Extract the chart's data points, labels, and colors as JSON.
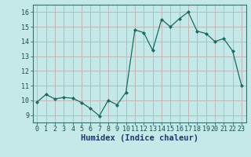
{
  "x": [
    0,
    1,
    2,
    3,
    4,
    5,
    6,
    7,
    8,
    9,
    10,
    11,
    12,
    13,
    14,
    15,
    16,
    17,
    18,
    19,
    20,
    21,
    22,
    23
  ],
  "y": [
    9.9,
    10.4,
    10.1,
    10.2,
    10.15,
    9.85,
    9.45,
    8.95,
    10.0,
    9.7,
    10.55,
    14.8,
    14.6,
    13.4,
    15.5,
    15.0,
    15.55,
    16.0,
    14.7,
    14.55,
    14.0,
    14.2,
    13.35,
    11.0
  ],
  "line_color": "#1a6b5e",
  "marker": "D",
  "marker_size": 2.0,
  "bg_color": "#c5e8e8",
  "grid_major_color": "#c0b8b8",
  "grid_minor_color": "#d8c8c8",
  "xlabel": "Humidex (Indice chaleur)",
  "ylim": [
    8.5,
    16.5
  ],
  "xlim": [
    -0.5,
    23.5
  ],
  "yticks": [
    9,
    10,
    11,
    12,
    13,
    14,
    15,
    16
  ],
  "xticks": [
    0,
    1,
    2,
    3,
    4,
    5,
    6,
    7,
    8,
    9,
    10,
    11,
    12,
    13,
    14,
    15,
    16,
    17,
    18,
    19,
    20,
    21,
    22,
    23
  ],
  "tick_fontsize": 6,
  "xlabel_fontsize": 7.5
}
